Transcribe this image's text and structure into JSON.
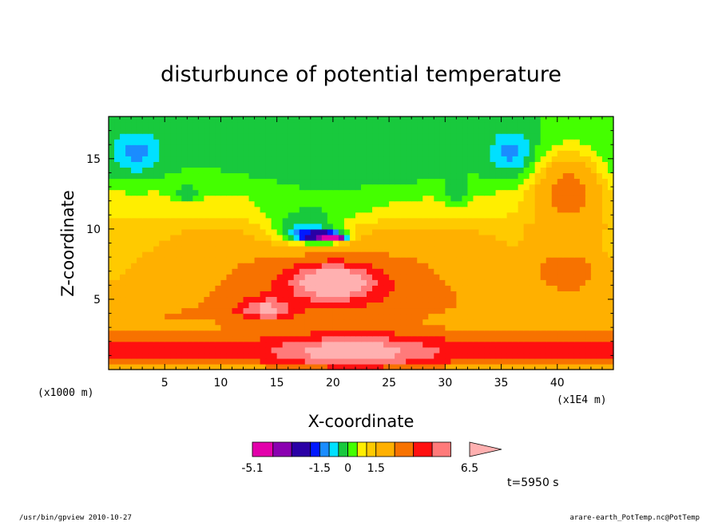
{
  "chart_data": {
    "type": "heatmap",
    "title": "disturbunce of potential temperature",
    "xlabel": "X-coordinate",
    "ylabel": "Z-coordinate",
    "x_unit_left": "(x1000 m)",
    "x_unit_right": "(x1E4 m)",
    "xlim": [
      0,
      45
    ],
    "ylim": [
      0,
      18
    ],
    "x_ticks": [
      5,
      10,
      15,
      20,
      25,
      30,
      35,
      40
    ],
    "y_ticks": [
      5,
      10,
      15
    ],
    "x_tick_labels": [
      "5",
      "10",
      "15",
      "20",
      "25",
      "30",
      "35",
      "40"
    ],
    "y_tick_labels": [
      "5",
      "10",
      "15"
    ],
    "colorbar": {
      "levels": [
        -5.1,
        -4,
        -3,
        -2,
        -1.5,
        -1,
        -0.5,
        0,
        0.5,
        1,
        1.5,
        2.5,
        3.5,
        4.5,
        5.5,
        6.5
      ],
      "colors": [
        "#e300ab",
        "#8a00b0",
        "#2a00a5",
        "#0018ff",
        "#1a8cff",
        "#00e0ff",
        "#18c93d",
        "#44ff00",
        "#ffee00",
        "#ffca00",
        "#ffb000",
        "#f77200",
        "#ff1010",
        "#ff7a7a",
        "#ffb0b0"
      ],
      "labels": [
        "-5.1",
        "-1.5",
        "0",
        "1.5",
        "6.5"
      ]
    },
    "time_label": "t=5950 s",
    "fields": [
      {
        "kind": "band",
        "value": 1.8,
        "z0": 0,
        "z1": 5.5
      },
      {
        "kind": "band",
        "value": 2.6,
        "z0": 0.3,
        "z1": 2.2
      },
      {
        "kind": "band",
        "value": 1.2,
        "z0": 5.5,
        "z1": 10.5
      },
      {
        "kind": "band",
        "value": 0.7,
        "z0": 10,
        "z1": 13
      },
      {
        "kind": "blob",
        "value": 2.2,
        "x": 20,
        "z": 6.5,
        "rx": 13,
        "rz": 3
      },
      {
        "kind": "blob",
        "value": 4.0,
        "x": 20,
        "z": 6.2,
        "rx": 3.5,
        "rz": 1.2
      },
      {
        "kind": "blob",
        "value": 3.0,
        "x": 14,
        "z": 4.3,
        "rx": 2.5,
        "rz": 0.8
      },
      {
        "kind": "blob",
        "value": 0.4,
        "x": 5,
        "z": 3.8,
        "rx": 5,
        "rz": 0.8
      },
      {
        "kind": "blob",
        "value": 0.4,
        "x": 40,
        "z": 4.2,
        "rx": 6,
        "rz": 0.8
      },
      {
        "kind": "blob",
        "value": -0.3,
        "x": 22,
        "z": 13.5,
        "rx": 8,
        "rz": 4.5
      },
      {
        "kind": "blob",
        "value": -0.8,
        "x": 18,
        "z": 10.5,
        "rx": 5,
        "rz": 2
      },
      {
        "kind": "blob",
        "value": -1.8,
        "x": 17.5,
        "z": 9.8,
        "rx": 3,
        "rz": 1
      },
      {
        "kind": "blob",
        "value": -3.2,
        "x": 19,
        "z": 9.5,
        "rx": 2,
        "rz": 0.4
      },
      {
        "kind": "blob",
        "value": -4.8,
        "x": 20,
        "z": 9.4,
        "rx": 1,
        "rz": 0.25
      },
      {
        "kind": "blob",
        "value": -1.2,
        "x": 2.5,
        "z": 15.5,
        "rx": 2.2,
        "rz": 1.5
      },
      {
        "kind": "blob",
        "value": -1.2,
        "x": 36,
        "z": 15.5,
        "rx": 2,
        "rz": 1.6
      },
      {
        "kind": "blob",
        "value": -1.0,
        "x": 7,
        "z": 12.5,
        "rx": 1.2,
        "rz": 0.5
      },
      {
        "kind": "blob",
        "value": -1.0,
        "x": 31,
        "z": 12.5,
        "rx": 1.2,
        "rz": 0.7
      },
      {
        "kind": "blob",
        "value": 2.8,
        "x": 41,
        "z": 13,
        "rx": 3,
        "rz": 2.5
      },
      {
        "kind": "blob",
        "value": 2.0,
        "x": 41,
        "z": 7,
        "rx": 3,
        "rz": 1.5
      },
      {
        "kind": "blob",
        "value": 2.5,
        "x": 22,
        "z": 1.2,
        "rx": 6,
        "rz": 1.4
      }
    ]
  },
  "footer": {
    "left": "/usr/bin/gpview   2010-10-27",
    "right": "arare-earth_PotTemp.nc@PotTemp"
  }
}
